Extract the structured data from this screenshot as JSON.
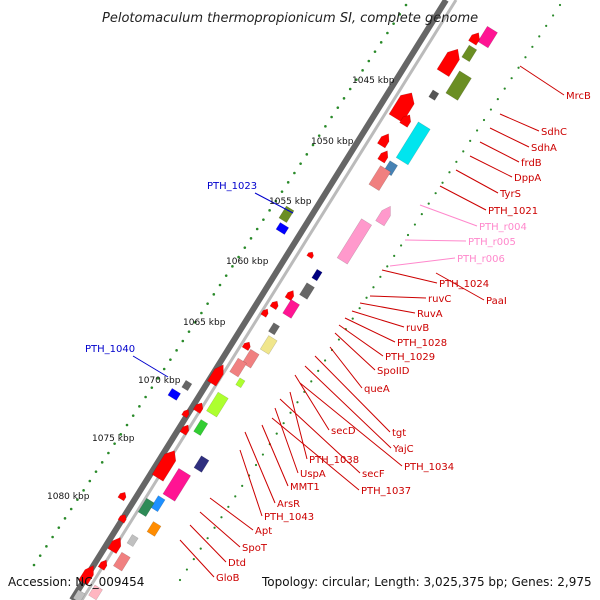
{
  "header": {
    "title": "Pelotomaculum thermopropionicum SI, complete genome"
  },
  "footer": {
    "accession": "Accession: NC_009454",
    "summary": "Topology: circular; Length: 3,025,375 bp; Genes: 2,975"
  },
  "colors": {
    "gene_label": "#cc0000",
    "rna_label": "#ff88cc",
    "left_label": "#0000cc",
    "backbone": "#888888",
    "tick": "#2a8a2a",
    "gene": "#ff0000"
  },
  "scale_ticks": [
    "1045 kbp",
    "1050 kbp",
    "1055 kbp",
    "1060 kbp",
    "1065 kbp",
    "1070 kbp",
    "1075 kbp",
    "1080 kbp"
  ],
  "left_labels": [
    "PTH_1023",
    "PTH_1040"
  ],
  "right_labels": [
    "MrcB",
    "SdhC",
    "SdhA",
    "frdB",
    "DppA",
    "TyrS",
    "PTH_1021",
    "PTH_r004",
    "PTH_r005",
    "PTH_r006",
    "PTH_1024",
    "PaaI",
    "ruvC",
    "RuvA",
    "ruvB",
    "PTH_1028",
    "PTH_1029",
    "SpoIID",
    "queA",
    "tgt",
    "YajC",
    "secD",
    "PTH_1034",
    "PTH_1038",
    "secF",
    "UspA",
    "PTH_1037",
    "MMT1",
    "ArsR",
    "PTH_1043",
    "Apt",
    "SpoT",
    "Dtd",
    "GloB"
  ]
}
